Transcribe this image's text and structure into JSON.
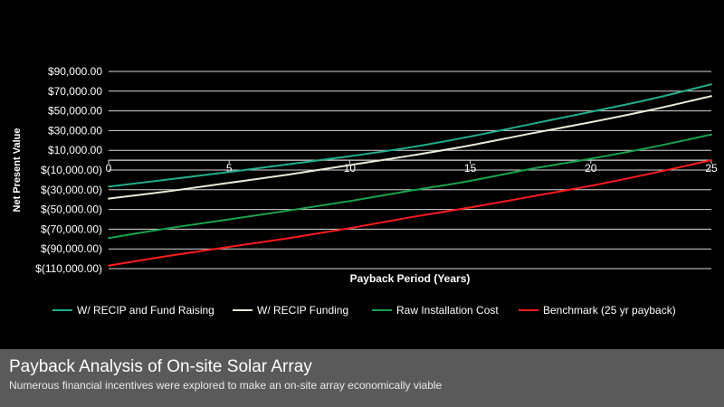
{
  "slide": {
    "title": "Payback Analysis of On-site Solar Array",
    "subtitle": "Numerous financial incentives were explored to make an on-site array economically viable"
  },
  "chart_data": {
    "type": "line",
    "xlabel": "Payback Period (Years)",
    "ylabel": "Net Present Value",
    "xlim": [
      0,
      25
    ],
    "ylim": [
      -110000,
      90000
    ],
    "x_ticks": [
      0,
      5,
      10,
      15,
      20,
      25
    ],
    "x_tick_labels": [
      "0",
      "5",
      "10",
      "15",
      "20",
      "25"
    ],
    "y_ticks": [
      90000,
      70000,
      50000,
      30000,
      10000,
      -10000,
      -30000,
      -50000,
      -70000,
      -90000,
      -110000
    ],
    "y_tick_labels": [
      "$90,000.00",
      "$70,000.00",
      "$50,000.00",
      "$30,000.00",
      "$10,000.00",
      "$(10,000.00)",
      "$(30,000.00)",
      "$(50,000.00)",
      "$(70,000.00)",
      "$(90,000.00)",
      "$(110,000.00)"
    ],
    "grid": true,
    "legend_position": "bottom",
    "x": [
      0,
      2.5,
      5,
      7.5,
      10,
      12.5,
      15,
      17.5,
      20,
      22.5,
      25
    ],
    "series": [
      {
        "name": "W/ RECIP and Fund Raising",
        "color": "#1fae8c",
        "values": [
          -26800,
          -19500,
          -12000,
          -4000,
          4000,
          13000,
          24000,
          36500,
          49000,
          62000,
          77000
        ]
      },
      {
        "name": "W/ RECIP Funding",
        "color": "#e8ecd6",
        "values": [
          -39000,
          -31500,
          -23000,
          -14500,
          -5000,
          4500,
          15000,
          27000,
          38500,
          51000,
          65000
        ]
      },
      {
        "name": "Raw Installation Cost",
        "color": "#16a34a",
        "values": [
          -79000,
          -69000,
          -60000,
          -51000,
          -41500,
          -31000,
          -21000,
          -9000,
          1500,
          13000,
          26000
        ]
      },
      {
        "name": "Benchmark (25 yr payback)",
        "color": "#ff1a1a",
        "values": [
          -107000,
          -97000,
          -88000,
          -79000,
          -69000,
          -58000,
          -48000,
          -37000,
          -26000,
          -13500,
          0
        ]
      }
    ]
  }
}
